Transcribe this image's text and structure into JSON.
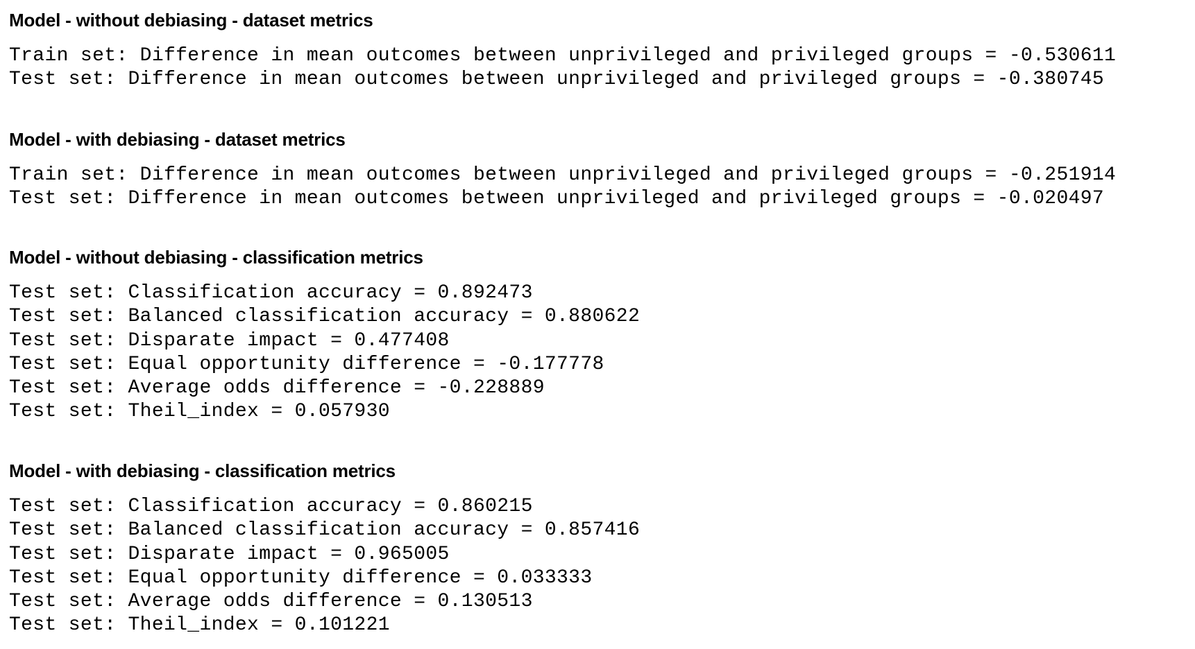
{
  "sections": [
    {
      "heading": "Model - without debiasing - dataset metrics",
      "lines": [
        "Train set: Difference in mean outcomes between unprivileged and privileged groups = -0.530611",
        "Test set: Difference in mean outcomes between unprivileged and privileged groups = -0.380745"
      ]
    },
    {
      "heading": "Model - with debiasing - dataset metrics",
      "lines": [
        "Train set: Difference in mean outcomes between unprivileged and privileged groups = -0.251914",
        "Test set: Difference in mean outcomes between unprivileged and privileged groups = -0.020497"
      ]
    },
    {
      "heading": "Model - without debiasing - classification metrics",
      "lines": [
        "Test set: Classification accuracy = 0.892473",
        "Test set: Balanced classification accuracy = 0.880622",
        "Test set: Disparate impact = 0.477408",
        "Test set: Equal opportunity difference = -0.177778",
        "Test set: Average odds difference = -0.228889",
        "Test set: Theil_index = 0.057930"
      ]
    },
    {
      "heading": "Model - with debiasing - classification metrics",
      "lines": [
        "Test set: Classification accuracy = 0.860215",
        "Test set: Balanced classification accuracy = 0.857416",
        "Test set: Disparate impact = 0.965005",
        "Test set: Equal opportunity difference = 0.033333",
        "Test set: Average odds difference = 0.130513",
        "Test set: Theil_index = 0.101221"
      ]
    }
  ]
}
